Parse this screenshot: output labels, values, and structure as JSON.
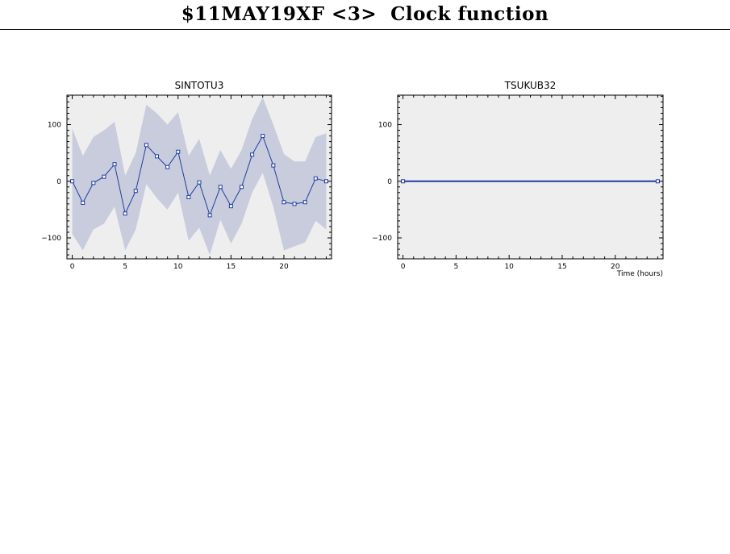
{
  "page": {
    "title": "$11MAY19XF <3>  Clock function"
  },
  "colors": {
    "background": "#ffffff",
    "plot_background": "#eeeeee",
    "band": "#c8ccdc",
    "line": "#1f3f9f",
    "axis": "#000000"
  },
  "chart_data": [
    {
      "type": "line",
      "title": "SINTOTU3",
      "xlabel": "",
      "ylabel": "",
      "xlim": [
        -0.5,
        24.5
      ],
      "ylim": [
        -137,
        152
      ],
      "xticks": [
        0,
        5,
        10,
        15,
        20
      ],
      "yticks": [
        -100,
        0,
        100
      ],
      "ytick_labels": [
        "−100",
        "0",
        "100"
      ],
      "grid": false,
      "series": [
        {
          "x": [
            0,
            1,
            2,
            3,
            4,
            5,
            6,
            7,
            8,
            9,
            10,
            11,
            12,
            13,
            14,
            15,
            16,
            17,
            18,
            19,
            20,
            21,
            22,
            23,
            24
          ],
          "values": [
            0,
            -38,
            -3,
            8,
            30,
            -57,
            -17,
            64,
            44,
            25,
            52,
            -28,
            -2,
            -60,
            -10,
            -44,
            -10,
            47,
            80,
            28,
            -37,
            -40,
            -37,
            5,
            0
          ],
          "upper": [
            93,
            45,
            78,
            90,
            105,
            10,
            50,
            135,
            120,
            100,
            122,
            45,
            75,
            10,
            55,
            22,
            55,
            110,
            148,
            100,
            48,
            35,
            35,
            78,
            85
          ],
          "lower": [
            -93,
            -122,
            -85,
            -75,
            -45,
            -122,
            -85,
            -5,
            -30,
            -50,
            -20,
            -105,
            -82,
            -130,
            -68,
            -110,
            -75,
            -20,
            15,
            -45,
            -122,
            -115,
            -108,
            -70,
            -85
          ]
        }
      ]
    },
    {
      "type": "line",
      "title": "TSUKUB32",
      "xlabel": "Time (hours)",
      "ylabel": "",
      "xlim": [
        -0.5,
        24.5
      ],
      "ylim": [
        -137,
        152
      ],
      "xticks": [
        0,
        5,
        10,
        15,
        20
      ],
      "yticks": [
        -100,
        0,
        100
      ],
      "ytick_labels": [
        "−100",
        "0",
        "100"
      ],
      "grid": false,
      "series": [
        {
          "x": [
            0,
            24
          ],
          "values": [
            0,
            0
          ]
        }
      ]
    }
  ]
}
